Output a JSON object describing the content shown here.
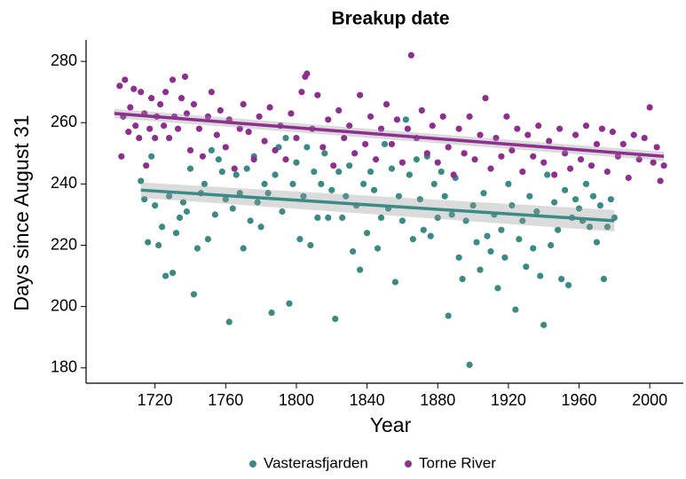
{
  "chart_data": {
    "type": "scatter",
    "title": "Breakup date",
    "xlabel": "Year",
    "ylabel": "Days since August 31",
    "xlim": [
      1681,
      2019
    ],
    "xticks": [
      1720,
      1760,
      1800,
      1840,
      1880,
      1920,
      1960,
      2000
    ],
    "ylim": [
      175,
      287
    ],
    "yticks": [
      180,
      200,
      220,
      240,
      260,
      280
    ],
    "grid": false,
    "legend": "bottom",
    "series": [
      {
        "name": "Vasterasfjarden",
        "color": "#3a8a86",
        "x": [
          1712,
          1714,
          1716,
          1718,
          1720,
          1722,
          1724,
          1726,
          1728,
          1730,
          1732,
          1734,
          1736,
          1738,
          1740,
          1742,
          1744,
          1746,
          1748,
          1750,
          1752,
          1754,
          1756,
          1758,
          1760,
          1762,
          1764,
          1766,
          1768,
          1770,
          1772,
          1774,
          1776,
          1778,
          1780,
          1782,
          1784,
          1786,
          1788,
          1790,
          1792,
          1794,
          1796,
          1798,
          1800,
          1802,
          1804,
          1806,
          1808,
          1810,
          1812,
          1814,
          1816,
          1818,
          1820,
          1822,
          1824,
          1826,
          1828,
          1830,
          1832,
          1834,
          1836,
          1838,
          1840,
          1842,
          1844,
          1846,
          1848,
          1850,
          1852,
          1854,
          1856,
          1858,
          1860,
          1862,
          1864,
          1866,
          1868,
          1870,
          1872,
          1874,
          1876,
          1878,
          1880,
          1882,
          1884,
          1886,
          1888,
          1890,
          1892,
          1894,
          1896,
          1898,
          1900,
          1902,
          1904,
          1906,
          1908,
          1910,
          1912,
          1914,
          1916,
          1918,
          1920,
          1922,
          1924,
          1926,
          1928,
          1930,
          1932,
          1934,
          1936,
          1938,
          1940,
          1942,
          1944,
          1946,
          1948,
          1950,
          1952,
          1954,
          1956,
          1958,
          1960,
          1962,
          1964,
          1966,
          1968,
          1970,
          1972,
          1974,
          1976,
          1978,
          1980
        ],
        "y": [
          241,
          235,
          221,
          249,
          233,
          220,
          226,
          210,
          236,
          211,
          224,
          229,
          234,
          231,
          245,
          204,
          219,
          237,
          240,
          222,
          251,
          230,
          248,
          244,
          235,
          195,
          232,
          243,
          237,
          219,
          245,
          228,
          249,
          234,
          226,
          240,
          237,
          198,
          243,
          252,
          231,
          255,
          201,
          240,
          247,
          222,
          236,
          252,
          220,
          244,
          229,
          240,
          250,
          229,
          238,
          196,
          244,
          229,
          236,
          246,
          218,
          233,
          212,
          240,
          224,
          244,
          238,
          219,
          229,
          253,
          232,
          245,
          208,
          236,
          228,
          261,
          243,
          222,
          248,
          235,
          225,
          249,
          223,
          240,
          229,
          244,
          236,
          197,
          230,
          242,
          216,
          209,
          228,
          181,
          233,
          221,
          212,
          237,
          223,
          218,
          230,
          206,
          225,
          216,
          240,
          233,
          199,
          222,
          228,
          213,
          236,
          219,
          231,
          210,
          194,
          243,
          220,
          234,
          225,
          209,
          238,
          207,
          229,
          235,
          232,
          228,
          240,
          226,
          236,
          221,
          233,
          209,
          226,
          235,
          229
        ],
        "trend_x": [
          1712,
          1980
        ],
        "trend": [
          238,
          228
        ],
        "trend_low": [
          235.5,
          224.5
        ],
        "trend_high": [
          240.5,
          231.5
        ]
      },
      {
        "name": "Torne River",
        "color": "#8e2f8f",
        "x": [
          1700,
          1701,
          1702,
          1703,
          1705,
          1706,
          1708,
          1709,
          1711,
          1712,
          1714,
          1715,
          1717,
          1718,
          1720,
          1721,
          1723,
          1725,
          1726,
          1728,
          1730,
          1731,
          1733,
          1735,
          1737,
          1738,
          1740,
          1742,
          1745,
          1747,
          1750,
          1752,
          1755,
          1757,
          1760,
          1762,
          1765,
          1768,
          1770,
          1773,
          1776,
          1779,
          1782,
          1785,
          1788,
          1791,
          1794,
          1797,
          1800,
          1803,
          1805,
          1806,
          1809,
          1812,
          1815,
          1818,
          1821,
          1824,
          1827,
          1830,
          1833,
          1836,
          1839,
          1842,
          1845,
          1848,
          1851,
          1854,
          1857,
          1860,
          1863,
          1865,
          1868,
          1871,
          1874,
          1877,
          1880,
          1883,
          1886,
          1889,
          1892,
          1895,
          1898,
          1901,
          1904,
          1907,
          1910,
          1913,
          1916,
          1919,
          1922,
          1925,
          1928,
          1931,
          1934,
          1937,
          1940,
          1943,
          1946,
          1949,
          1952,
          1955,
          1958,
          1961,
          1964,
          1967,
          1970,
          1973,
          1976,
          1979,
          1982,
          1985,
          1988,
          1991,
          1994,
          1997,
          2000,
          2002,
          2004,
          2006,
          2008
        ],
        "y": [
          272,
          249,
          262,
          274,
          257,
          265,
          271,
          259,
          255,
          270,
          263,
          246,
          258,
          268,
          255,
          262,
          266,
          259,
          270,
          255,
          274,
          262,
          258,
          268,
          275,
          263,
          251,
          266,
          258,
          249,
          262,
          270,
          256,
          264,
          252,
          261,
          245,
          258,
          266,
          257,
          248,
          262,
          254,
          265,
          251,
          259,
          248,
          263,
          255,
          270,
          275,
          276,
          258,
          269,
          252,
          261,
          246,
          264,
          255,
          259,
          250,
          269,
          253,
          262,
          248,
          258,
          266,
          253,
          261,
          247,
          258,
          282,
          255,
          264,
          250,
          259,
          247,
          262,
          252,
          243,
          258,
          250,
          262,
          248,
          256,
          268,
          245,
          255,
          249,
          262,
          251,
          258,
          244,
          256,
          249,
          259,
          247,
          254,
          243,
          258,
          250,
          245,
          256,
          248,
          259,
          246,
          253,
          258,
          244,
          257,
          249,
          253,
          242,
          256,
          248,
          255,
          265,
          247,
          252,
          241,
          246
        ],
        "trend_x": [
          1697,
          2008
        ],
        "trend": [
          263,
          249
        ],
        "trend_low": [
          261.5,
          247.5
        ],
        "trend_high": [
          264.5,
          250.5
        ]
      }
    ]
  }
}
